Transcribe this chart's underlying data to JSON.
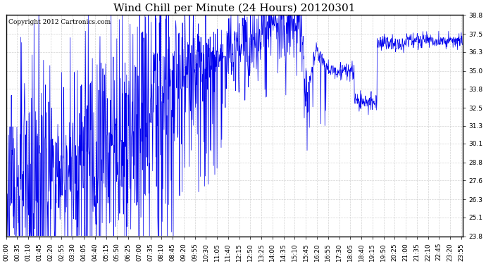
{
  "title": "Wind Chill per Minute (24 Hours) 20120301",
  "copyright_text": "Copyright 2012 Cartronics.com",
  "line_color": "#0000ee",
  "background_color": "#ffffff",
  "plot_bg_color": "#ffffff",
  "yticks": [
    23.8,
    25.1,
    26.3,
    27.6,
    28.8,
    30.1,
    31.3,
    32.5,
    33.8,
    35.0,
    36.3,
    37.5,
    38.8
  ],
  "ymin": 23.8,
  "ymax": 38.8,
  "grid_color": "#c8c8c8",
  "grid_style": "--",
  "title_fontsize": 11,
  "tick_fontsize": 6.5,
  "copyright_fontsize": 6.5
}
